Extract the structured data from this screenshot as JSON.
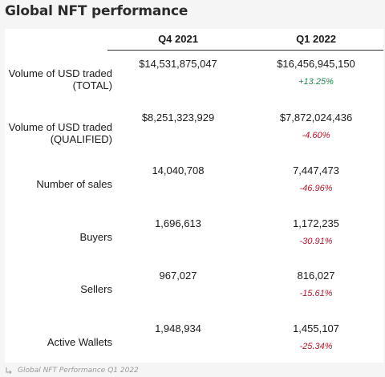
{
  "title": "Global NFT performance",
  "columns": {
    "q4": "Q4 2021",
    "q1": "Q1 2022"
  },
  "rows": [
    {
      "label_line1": "Volume of USD traded",
      "label_line2": "(TOTAL)",
      "q4": "$14,531,875,047",
      "q1": "$16,456,945,150",
      "change": "+13.25%"
    },
    {
      "label_line1": "Volume of USD traded",
      "label_line2": "(QUALIFIED)",
      "q4": "$8,251,323,929",
      "q1": "$7,872,024,436",
      "change": "-4.60%"
    },
    {
      "label_line1": "Number of sales",
      "label_line2": "",
      "q4": "14,040,708",
      "q1": "7,447,473",
      "change": "-46.96%"
    },
    {
      "label_line1": "Buyers",
      "label_line2": "",
      "q4": "1,696,613",
      "q1": "1,172,235",
      "change": "-30.91%"
    },
    {
      "label_line1": "Sellers",
      "label_line2": "",
      "q4": "967,027",
      "q1": "816,027",
      "change": "-15.61%"
    },
    {
      "label_line1": "Active Wallets",
      "label_line2": "",
      "q4": "1,948,934",
      "q1": "1,455,107",
      "change": "-25.34%"
    }
  ],
  "footer": {
    "icon": "source-arrow-icon",
    "text": "Global NFT Performance Q1 2022"
  },
  "colors": {
    "positive": "#1e8c4e",
    "negative": "#b2182b"
  }
}
